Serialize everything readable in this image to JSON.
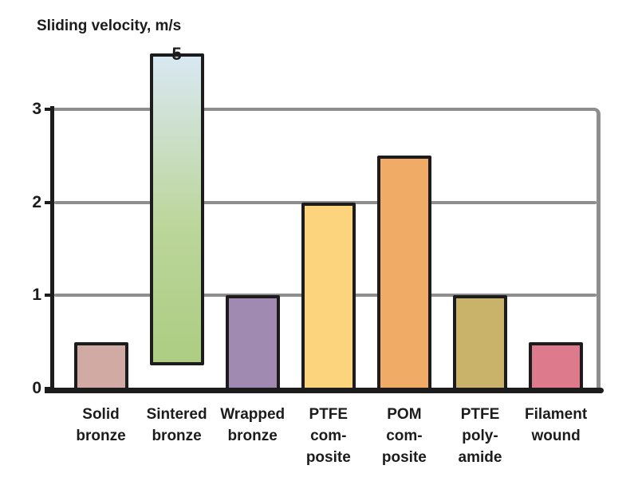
{
  "chart_data": {
    "type": "bar",
    "title": "Sliding velocity, m/s",
    "ylabel": "Sliding velocity, m/s",
    "xlabel": "",
    "yticks": [
      0,
      1,
      2,
      3
    ],
    "ylim": [
      0,
      3
    ],
    "grid": true,
    "legend": "none",
    "categories": [
      "Solid bronze",
      "Sintered bronze",
      "Wrapped bronze",
      "PTFE composite",
      "POM composite",
      "PTFE polyamide",
      "Filament wound"
    ],
    "bars": [
      {
        "category": "Solid bronze",
        "label_lines": [
          "Solid",
          "bronze"
        ],
        "start": 0,
        "value": 0.5,
        "color": "#d2aaa4"
      },
      {
        "category": "Sintered bronze",
        "label_lines": [
          "Sintered",
          "bronze"
        ],
        "start": 0.25,
        "value": 5,
        "clipped": true,
        "annotation": "5",
        "gradient_top": "#d9e8f2",
        "gradient_mid": "#bcd69b",
        "gradient_bottom": "#accd82"
      },
      {
        "category": "Wrapped bronze",
        "label_lines": [
          "Wrapped",
          "bronze"
        ],
        "start": 0,
        "value": 1,
        "color": "#a08ab2"
      },
      {
        "category": "PTFE composite",
        "label_lines": [
          "PTFE",
          "com-",
          "posite"
        ],
        "start": 0,
        "value": 2,
        "color": "#fcd47e"
      },
      {
        "category": "POM composite",
        "label_lines": [
          "POM",
          "com-",
          "posite"
        ],
        "start": 0,
        "value": 2.5,
        "color": "#f0ab66"
      },
      {
        "category": "PTFE polyamide",
        "label_lines": [
          "PTFE",
          "poly-",
          "amide"
        ],
        "start": 0,
        "value": 1,
        "color": "#c9b26a"
      },
      {
        "category": "Filament wound",
        "label_lines": [
          "Filament",
          "wound"
        ],
        "start": 0,
        "value": 0.5,
        "color": "#dd7a8c"
      }
    ],
    "colors": {
      "background": "#ffffff",
      "grid": "#8e8e8e",
      "axis": "#1c1c1c",
      "text": "#1c1c1c",
      "bar_border": "#1c1c1c"
    }
  }
}
